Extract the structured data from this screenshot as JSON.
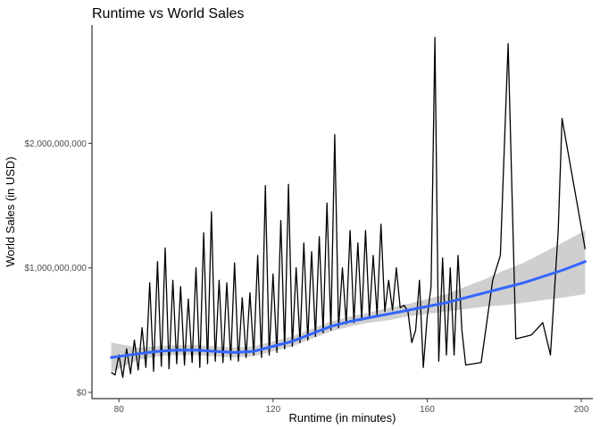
{
  "chart_data": {
    "type": "line",
    "title": "Runtime vs World Sales",
    "xlabel": "Runtime (in minutes)",
    "ylabel": "World Sales (in USD)",
    "xlim": [
      73,
      203
    ],
    "ylim": [
      -50000000.0,
      2950000000.0
    ],
    "x_ticks": [
      {
        "value": 80,
        "label": "80"
      },
      {
        "value": 120,
        "label": "120"
      },
      {
        "value": 160,
        "label": "160"
      },
      {
        "value": 200,
        "label": "200"
      }
    ],
    "y_ticks": [
      {
        "value": 0,
        "label": "$0"
      },
      {
        "value": 1000000000,
        "label": "$1,000,000,000"
      },
      {
        "value": 2000000000,
        "label": "$2,000,000,000"
      }
    ],
    "grid": false,
    "colors": {
      "raw_line": "#000000",
      "smooth_line": "#3366ff",
      "ribbon": "#bfbfbf"
    },
    "series": [
      {
        "role": "raw",
        "x": [
          78,
          79,
          80,
          81,
          82,
          83,
          84,
          85,
          86,
          87,
          88,
          89,
          90,
          91,
          92,
          93,
          94,
          95,
          96,
          97,
          98,
          99,
          100,
          101,
          102,
          103,
          104,
          105,
          106,
          107,
          108,
          109,
          110,
          111,
          112,
          113,
          114,
          115,
          116,
          117,
          118,
          119,
          120,
          121,
          122,
          123,
          124,
          125,
          126,
          127,
          128,
          129,
          130,
          131,
          132,
          133,
          134,
          135,
          136,
          137,
          138,
          139,
          140,
          141,
          142,
          143,
          144,
          145,
          146,
          147,
          148,
          149,
          150,
          151,
          152,
          153,
          154,
          155,
          156,
          157,
          158,
          159,
          160,
          161,
          162,
          163,
          164,
          165,
          166,
          167,
          168,
          169,
          170,
          174,
          177,
          179,
          181,
          183,
          187,
          190,
          192,
          194,
          195,
          201
        ],
        "y": [
          160000000,
          140000000,
          300000000,
          120000000,
          350000000,
          150000000,
          420000000,
          180000000,
          520000000,
          200000000,
          880000000,
          170000000,
          1050000000,
          210000000,
          1160000000,
          190000000,
          900000000,
          230000000,
          850000000,
          220000000,
          750000000,
          240000000,
          1000000000,
          200000000,
          1280000000,
          230000000,
          1450000000,
          250000000,
          900000000,
          240000000,
          880000000,
          260000000,
          1040000000,
          250000000,
          760000000,
          280000000,
          800000000,
          300000000,
          1100000000,
          280000000,
          1660000000,
          300000000,
          950000000,
          320000000,
          1380000000,
          350000000,
          1670000000,
          370000000,
          1000000000,
          400000000,
          1200000000,
          420000000,
          1130000000,
          450000000,
          1250000000,
          480000000,
          1520000000,
          500000000,
          2070000000,
          520000000,
          1000000000,
          550000000,
          1300000000,
          560000000,
          1200000000,
          580000000,
          1300000000,
          600000000,
          1100000000,
          620000000,
          1350000000,
          650000000,
          900000000,
          660000000,
          1000000000,
          680000000,
          700000000,
          650000000,
          400000000,
          500000000,
          900000000,
          200000000,
          600000000,
          850000000,
          2850000000,
          250000000,
          1080000000,
          300000000,
          1000000000,
          300000000,
          1100000000,
          500000000,
          220000000,
          240000000,
          900000000,
          1100000000,
          2800000000,
          430000000,
          460000000,
          560000000,
          300000000,
          1300000000,
          2200000000,
          1150000000
        ]
      },
      {
        "role": "smooth",
        "x": [
          78,
          85,
          90,
          95,
          100,
          105,
          110,
          115,
          120,
          125,
          130,
          135,
          140,
          145,
          150,
          155,
          160,
          165,
          170,
          175,
          180,
          185,
          190,
          195,
          201
        ],
        "y": [
          280000000,
          310000000,
          330000000,
          340000000,
          340000000,
          330000000,
          320000000,
          330000000,
          370000000,
          410000000,
          470000000,
          530000000,
          570000000,
          600000000,
          630000000,
          660000000,
          690000000,
          720000000,
          760000000,
          800000000,
          840000000,
          880000000,
          930000000,
          980000000,
          1050000000
        ]
      },
      {
        "role": "ribbon",
        "x": [
          78,
          85,
          90,
          95,
          100,
          105,
          110,
          115,
          120,
          125,
          130,
          135,
          140,
          145,
          150,
          155,
          160,
          165,
          170,
          175,
          180,
          185,
          190,
          195,
          201
        ],
        "lower": [
          160000000,
          260000000,
          290000000,
          300000000,
          300000000,
          290000000,
          280000000,
          290000000,
          330000000,
          370000000,
          430000000,
          490000000,
          530000000,
          560000000,
          580000000,
          610000000,
          630000000,
          650000000,
          670000000,
          690000000,
          700000000,
          720000000,
          740000000,
          760000000,
          790000000
        ],
        "upper": [
          400000000,
          360000000,
          370000000,
          380000000,
          380000000,
          370000000,
          360000000,
          370000000,
          410000000,
          450000000,
          510000000,
          570000000,
          610000000,
          640000000,
          680000000,
          710000000,
          750000000,
          790000000,
          850000000,
          910000000,
          980000000,
          1040000000,
          1120000000,
          1200000000,
          1300000000
        ]
      }
    ]
  }
}
